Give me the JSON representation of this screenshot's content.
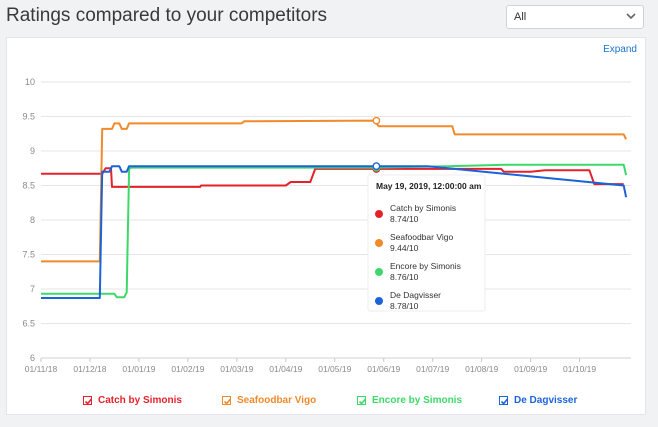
{
  "header": {
    "title": "Ratings compared to your competitors",
    "filter_value": "All"
  },
  "card": {
    "expand_label": "Expand"
  },
  "tooltip": {
    "date": "May 19, 2019, 12:00:00 am",
    "entries": [
      {
        "name": "Catch by Simonis",
        "value": "8.74/10",
        "color": "#e5222b"
      },
      {
        "name": "Seafoodbar Vigo",
        "value": "9.44/10",
        "color": "#f08a2b"
      },
      {
        "name": "Encore by Simonis",
        "value": "8.76/10",
        "color": "#3dd86a"
      },
      {
        "name": "De Dagvisser",
        "value": "8.78/10",
        "color": "#1c63d9"
      }
    ]
  },
  "legend": [
    {
      "name": "Catch by Simonis",
      "color": "#e5222b"
    },
    {
      "name": "Seafoodbar Vigo",
      "color": "#f08a2b"
    },
    {
      "name": "Encore by Simonis",
      "color": "#3dd86a"
    },
    {
      "name": "De Dagvisser",
      "color": "#1c63d9"
    }
  ],
  "chart_data": {
    "type": "line",
    "title": "",
    "xlabel": "",
    "ylabel": "",
    "ylim": [
      6,
      10
    ],
    "yticks": [
      "6",
      "6.5",
      "7",
      "7.5",
      "8",
      "8.5",
      "9",
      "9.5",
      "10"
    ],
    "xticks": [
      "01/11/18",
      "01/12/18",
      "01/01/19",
      "01/02/19",
      "01/03/19",
      "01/04/19",
      "01/05/19",
      "01/06/19",
      "01/07/19",
      "01/08/19",
      "01/09/19",
      "01/10/19"
    ],
    "grid": "horizontal",
    "x_unit": "months since 01/11/18",
    "series": [
      {
        "name": "Catch by Simonis",
        "color": "#e5222b",
        "points": [
          [
            0,
            8.67
          ],
          [
            1.25,
            8.67
          ],
          [
            1.32,
            8.75
          ],
          [
            1.43,
            8.75
          ],
          [
            1.45,
            8.48
          ],
          [
            3.25,
            8.48
          ],
          [
            3.27,
            8.5
          ],
          [
            5.0,
            8.5
          ],
          [
            5.1,
            8.55
          ],
          [
            5.5,
            8.55
          ],
          [
            5.6,
            8.74
          ],
          [
            8.1,
            8.74
          ],
          [
            9.4,
            8.74
          ],
          [
            9.45,
            8.7
          ],
          [
            10,
            8.7
          ],
          [
            10.3,
            8.72
          ],
          [
            11.2,
            8.72
          ],
          [
            11.3,
            8.52
          ],
          [
            11.9,
            8.52
          ]
        ]
      },
      {
        "name": "Seafoodbar Vigo",
        "color": "#f08a2b",
        "points": [
          [
            0,
            7.4
          ],
          [
            1.2,
            7.4
          ],
          [
            1.25,
            9.32
          ],
          [
            1.45,
            9.32
          ],
          [
            1.5,
            9.4
          ],
          [
            1.6,
            9.4
          ],
          [
            1.65,
            9.32
          ],
          [
            1.75,
            9.32
          ],
          [
            1.8,
            9.4
          ],
          [
            4.1,
            9.4
          ],
          [
            4.15,
            9.43
          ],
          [
            6.8,
            9.44
          ],
          [
            6.9,
            9.36
          ],
          [
            8.4,
            9.36
          ],
          [
            8.45,
            9.24
          ],
          [
            11.9,
            9.24
          ],
          [
            11.95,
            9.17
          ]
        ]
      },
      {
        "name": "Encore by Simonis",
        "color": "#3dd86a",
        "points": [
          [
            0,
            6.93
          ],
          [
            1.5,
            6.93
          ],
          [
            1.55,
            6.88
          ],
          [
            1.7,
            6.88
          ],
          [
            1.75,
            6.95
          ],
          [
            1.8,
            8.74
          ],
          [
            1.85,
            8.76
          ],
          [
            6.8,
            8.76
          ],
          [
            8.3,
            8.78
          ],
          [
            9.5,
            8.8
          ],
          [
            11.9,
            8.8
          ],
          [
            11.95,
            8.65
          ]
        ]
      },
      {
        "name": "De Dagvisser",
        "color": "#1c63d9",
        "points": [
          [
            0,
            6.87
          ],
          [
            1.2,
            6.87
          ],
          [
            1.25,
            8.7
          ],
          [
            1.4,
            8.7
          ],
          [
            1.45,
            8.78
          ],
          [
            1.6,
            8.78
          ],
          [
            1.65,
            8.7
          ],
          [
            1.75,
            8.7
          ],
          [
            1.8,
            8.78
          ],
          [
            7.9,
            8.78
          ],
          [
            11.9,
            8.5
          ],
          [
            11.95,
            8.33
          ]
        ]
      }
    ],
    "hover_x": 6.85
  }
}
